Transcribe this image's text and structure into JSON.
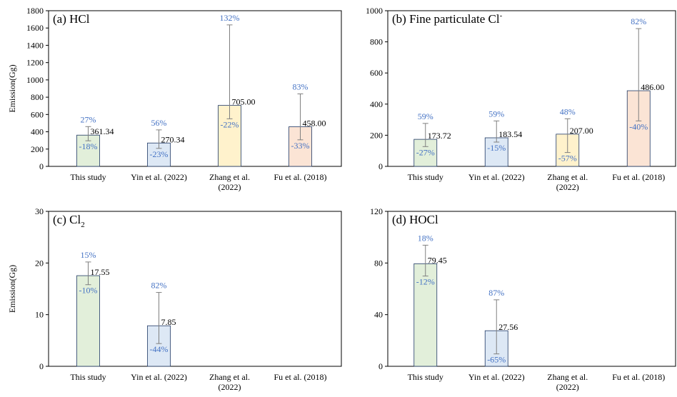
{
  "chart_data": [
    {
      "type": "bar",
      "panel_label": "(a) HCl",
      "title_parts": [],
      "ylabel": "Emission(Gg)",
      "ylim": [
        0,
        1800
      ],
      "yticks": [
        "0",
        "200",
        "400",
        "600",
        "800",
        "1000",
        "1200",
        "1400",
        "1600",
        "1800"
      ],
      "categories": [
        "This study",
        "Yin et al. (2022)",
        "Zhang et al. (2022)",
        "Fu et al. (2018)"
      ],
      "category_lines": [
        [
          "This study"
        ],
        [
          "Yin et al. (2022)"
        ],
        [
          "Zhang et al.",
          "(2022)"
        ],
        [
          "Fu et al. (2018)"
        ]
      ],
      "values": [
        361.34,
        270.34,
        705.0,
        458.0
      ],
      "value_labels": [
        "361.34",
        "270.34",
        "705.00",
        "458.00"
      ],
      "upper_pct": [
        "27%",
        "56%",
        "132%",
        "83%"
      ],
      "lower_pct": [
        "-18%",
        "-23%",
        "-22%",
        "-33%"
      ],
      "err_upper": [
        460,
        422,
        1636,
        838
      ],
      "err_lower": [
        296,
        208,
        550,
        307
      ],
      "bar_colors": [
        "#e2efda",
        "#dde8f5",
        "#fff2cc",
        "#fbe4d5"
      ]
    },
    {
      "type": "bar",
      "panel_label": "(b) Fine particulate Cl",
      "panel_label_sup": "-",
      "ylabel": "",
      "ylim": [
        0,
        1000
      ],
      "yticks": [
        "0",
        "200",
        "400",
        "600",
        "800",
        "1000"
      ],
      "categories": [
        "This study",
        "Yin et al. (2022)",
        "Zhang et al. (2022)",
        "Fu et al. (2018)"
      ],
      "category_lines": [
        [
          "This study"
        ],
        [
          "Yin et al. (2022)"
        ],
        [
          "Zhang et al.",
          "(2022)"
        ],
        [
          "Fu et al. (2018)"
        ]
      ],
      "values": [
        173.72,
        183.54,
        207.0,
        486.0
      ],
      "value_labels": [
        "173.72",
        "183.54",
        "207.00",
        "486.00"
      ],
      "upper_pct": [
        "59%",
        "59%",
        "48%",
        "82%"
      ],
      "lower_pct": [
        "-27%",
        "-15%",
        "-57%",
        "-40%"
      ],
      "err_upper": [
        276,
        292,
        306,
        885
      ],
      "err_lower": [
        127,
        156,
        89,
        292
      ],
      "bar_colors": [
        "#e2efda",
        "#dde8f5",
        "#fff2cc",
        "#fbe4d5"
      ]
    },
    {
      "type": "bar",
      "panel_label": "(c) Cl",
      "panel_label_sub": "2",
      "ylabel": "Emission(Gg)",
      "ylim": [
        0,
        30
      ],
      "yticks": [
        "0",
        "10",
        "20",
        "30"
      ],
      "categories": [
        "This study",
        "Yin et al. (2022)",
        "Zhang et al. (2022)",
        "Fu et al. (2018)"
      ],
      "category_lines": [
        [
          "This study"
        ],
        [
          "Yin et al. (2022)"
        ],
        [
          "Zhang et al.",
          "(2022)"
        ],
        [
          "Fu et al. (2018)"
        ]
      ],
      "values": [
        17.55,
        7.85,
        null,
        null
      ],
      "value_labels": [
        "17.55",
        "7.85",
        "",
        ""
      ],
      "upper_pct": [
        "15%",
        "82%",
        "",
        ""
      ],
      "lower_pct": [
        "-10%",
        "-44%",
        "",
        ""
      ],
      "err_upper": [
        20.2,
        14.3,
        null,
        null
      ],
      "err_lower": [
        15.8,
        4.4,
        null,
        null
      ],
      "bar_colors": [
        "#e2efda",
        "#dde8f5",
        "#fff2cc",
        "#fbe4d5"
      ]
    },
    {
      "type": "bar",
      "panel_label": "(d) HOCl",
      "ylabel": "",
      "ylim": [
        0,
        120
      ],
      "yticks": [
        "0",
        "40",
        "80",
        "120"
      ],
      "categories": [
        "This study",
        "Yin et al. (2022)",
        "Zhang et al. (2022)",
        "Fu et al. (2018)"
      ],
      "category_lines": [
        [
          "This study"
        ],
        [
          "Yin et al. (2022)"
        ],
        [
          "Zhang et al.",
          "(2022)"
        ],
        [
          "Fu et al. (2018)"
        ]
      ],
      "values": [
        79.45,
        27.56,
        null,
        null
      ],
      "value_labels": [
        "79.45",
        "27.56",
        "",
        ""
      ],
      "upper_pct": [
        "18%",
        "87%",
        "",
        ""
      ],
      "lower_pct": [
        "-12%",
        "-65%",
        "",
        ""
      ],
      "err_upper": [
        93.8,
        51.5,
        null,
        null
      ],
      "err_lower": [
        69.9,
        9.6,
        null,
        null
      ],
      "bar_colors": [
        "#e2efda",
        "#dde8f5",
        "#fff2cc",
        "#fbe4d5"
      ]
    }
  ],
  "colors": {
    "axis": "#000000",
    "frame": "#000000",
    "errorbar": "#808080",
    "bar_edge": "#1f3864",
    "pct_text": "#4472c4",
    "value_text": "#000000"
  }
}
